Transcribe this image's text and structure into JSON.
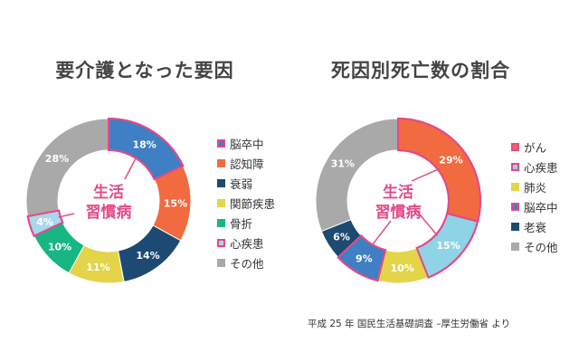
{
  "chart_data": [
    {
      "type": "pie",
      "variant": "donut",
      "title": "要介護となった要因",
      "center_label": [
        "生活",
        "習慣病"
      ],
      "categories": [
        "脳卒中",
        "認知障",
        "衰弱",
        "関節疾患",
        "骨折",
        "心疾患",
        "その他"
      ],
      "values": [
        18,
        15,
        14,
        11,
        10,
        4,
        28
      ],
      "value_labels": [
        "18%",
        "15%",
        "14%",
        "11%",
        "10%",
        "4%",
        "28%"
      ],
      "colors": [
        "#3f7fc3",
        "#f26a3f",
        "#1d4a72",
        "#e3d44a",
        "#17b683",
        "#a8d8ec",
        "#a9a9a9"
      ],
      "highlighted": [
        "脳卒中",
        "心疾患"
      ],
      "legend_position": "right"
    },
    {
      "type": "pie",
      "variant": "donut",
      "title": "死因別死亡数の割合",
      "center_label": [
        "生活",
        "習慣病"
      ],
      "categories": [
        "がん",
        "心疾患",
        "肺炎",
        "脳卒中",
        "老衰",
        "その他"
      ],
      "values": [
        29,
        15,
        10,
        9,
        6,
        31
      ],
      "value_labels": [
        "29%",
        "15%",
        "10%",
        "9%",
        "6%",
        "31%"
      ],
      "colors": [
        "#f26a3f",
        "#8fd3e6",
        "#e3d44a",
        "#3f7fc3",
        "#1d4a72",
        "#a9a9a9"
      ],
      "highlighted": [
        "がん",
        "心疾患",
        "脳卒中"
      ],
      "legend_position": "right"
    }
  ],
  "source": "平成 25 年 国民生活基礎調査 –厚生労働省 より",
  "highlight_color": "#e24a8a"
}
